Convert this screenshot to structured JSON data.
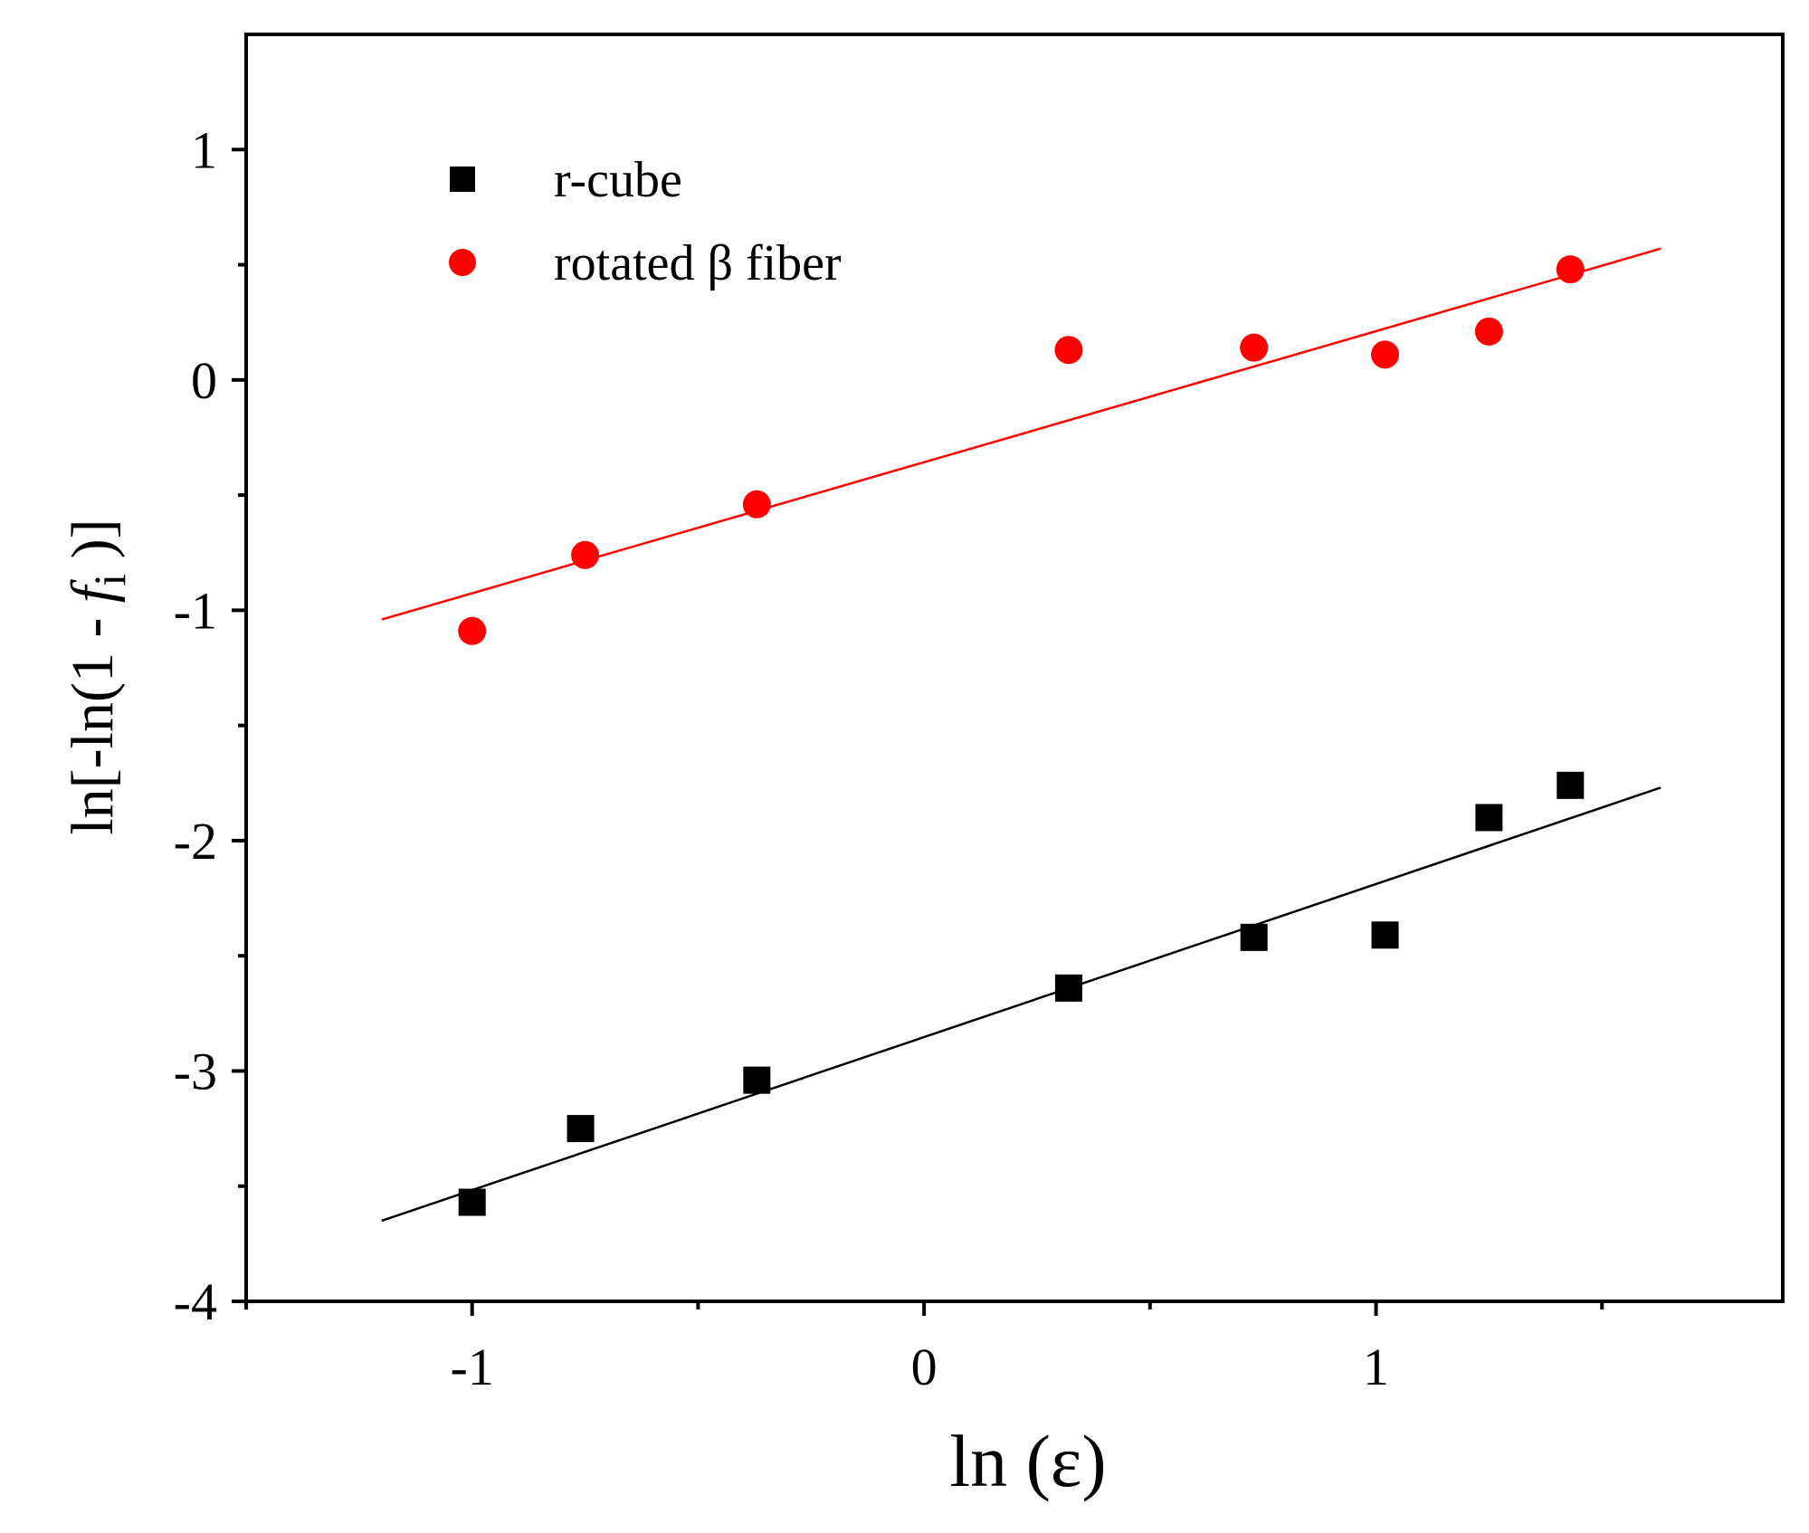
{
  "chart_data": {
    "type": "scatter",
    "title": "",
    "xlabel": "ln (ε)",
    "ylabel": {
      "prefix": "ln[-ln(1 - ",
      "var": "f",
      "sub": "i",
      "suffix": " )]"
    },
    "xlim": [
      -1.5,
      1.9
    ],
    "ylim": [
      -4,
      1.5
    ],
    "xticks": [
      -1,
      0,
      1
    ],
    "xtick_labels": [
      "-1",
      "0",
      "1"
    ],
    "xminor_ticks": [
      -1.5,
      -0.5,
      0.5,
      1.5
    ],
    "yticks": [
      -4,
      -3,
      -2,
      -1,
      0,
      1
    ],
    "ytick_labels": [
      "-4",
      "-3",
      "-2",
      "-1",
      "0",
      "1"
    ],
    "yminor_ticks": [
      -3.5,
      -2.5,
      -1.5,
      -0.5,
      0.5
    ],
    "grid": false,
    "legend_position": "top-left",
    "series": [
      {
        "name": "r-cube",
        "marker": "square",
        "color": "#000000",
        "x": [
          -1.0,
          -0.76,
          -0.37,
          0.32,
          0.73,
          1.02,
          1.25,
          1.43
        ],
        "y": [
          -3.57,
          -3.25,
          -3.04,
          -2.64,
          -2.42,
          -2.41,
          -1.9,
          -1.76
        ],
        "fit": {
          "x": [
            -1.2,
            1.63
          ],
          "y": [
            -3.65,
            -1.77
          ]
        }
      },
      {
        "name": "rotated β fiber",
        "marker": "circle",
        "color": "#ff0000",
        "x": [
          -1.0,
          -0.75,
          -0.37,
          0.32,
          0.73,
          1.02,
          1.25,
          1.43
        ],
        "y": [
          -1.09,
          -0.76,
          -0.54,
          0.13,
          0.14,
          0.11,
          0.21,
          0.48
        ],
        "fit": {
          "x": [
            -1.2,
            1.63
          ],
          "y": [
            -1.04,
            0.57
          ]
        }
      }
    ]
  }
}
